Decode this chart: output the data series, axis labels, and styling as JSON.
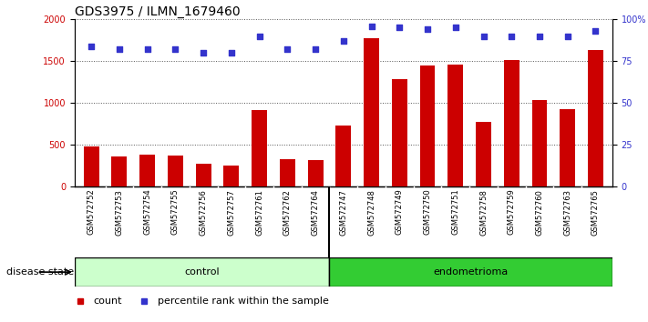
{
  "title": "GDS3975 / ILMN_1679460",
  "samples": [
    "GSM572752",
    "GSM572753",
    "GSM572754",
    "GSM572755",
    "GSM572756",
    "GSM572757",
    "GSM572761",
    "GSM572762",
    "GSM572764",
    "GSM572747",
    "GSM572748",
    "GSM572749",
    "GSM572750",
    "GSM572751",
    "GSM572758",
    "GSM572759",
    "GSM572760",
    "GSM572763",
    "GSM572765"
  ],
  "counts": [
    480,
    360,
    380,
    370,
    280,
    255,
    920,
    325,
    320,
    730,
    1770,
    1290,
    1450,
    1455,
    780,
    1510,
    1040,
    930,
    1630
  ],
  "percentiles": [
    84,
    82,
    82,
    82,
    80,
    80,
    90,
    82,
    82,
    87,
    96,
    95,
    94,
    95,
    90,
    90,
    90,
    90,
    93
  ],
  "bar_color": "#cc0000",
  "dot_color": "#3333cc",
  "ylim_left": [
    0,
    2000
  ],
  "ylim_right": [
    0,
    100
  ],
  "yticks_left": [
    0,
    500,
    1000,
    1500,
    2000
  ],
  "yticks_right": [
    0,
    25,
    50,
    75,
    100
  ],
  "ytick_labels_right": [
    "0",
    "25",
    "50",
    "75",
    "100%"
  ],
  "control_count": 9,
  "group_label_control": "control",
  "group_label_endometrioma": "endometrioma",
  "disease_state_label": "disease state",
  "legend_count": "count",
  "legend_percentile": "percentile rank within the sample",
  "bg_plot": "#ffffff",
  "bg_xticklabel": "#d0d0d0",
  "bg_control": "#ccffcc",
  "bg_endometrioma": "#33cc33",
  "title_fontsize": 10,
  "tick_fontsize": 7,
  "bar_width": 0.55
}
